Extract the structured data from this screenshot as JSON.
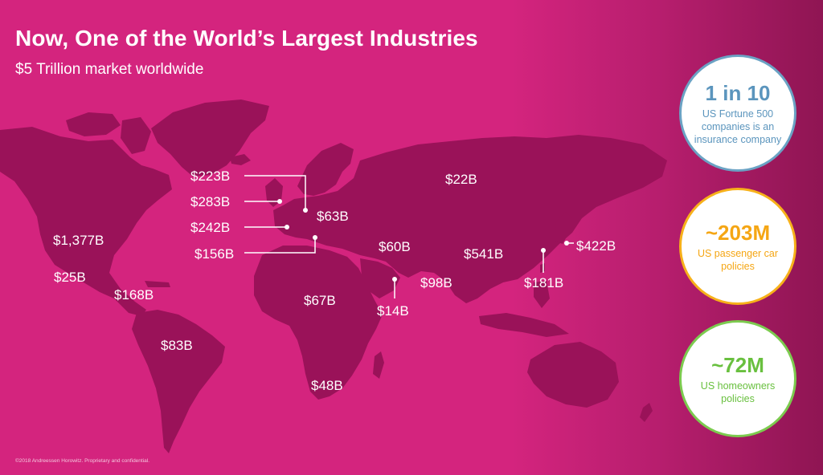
{
  "title": "Now, One of the World’s Largest Industries",
  "subtitle": "$5 Trillion market worldwide",
  "footer": "©2018 Andreessen Horowitz. Proprietary and confidential.",
  "colors": {
    "background": "#d4247e",
    "land": "#9a1259",
    "stat_blue": "#5b95bd",
    "stat_orange": "#f5a614",
    "stat_green": "#69c03f"
  },
  "map_labels": [
    {
      "region": "United States",
      "value": "$1,377B"
    },
    {
      "region": "Mexico",
      "value": "$25B"
    },
    {
      "region": "Central America and Caribbean",
      "value": "$168B"
    },
    {
      "region": "South America",
      "value": "$83B"
    },
    {
      "region": "Switzerland",
      "value": "$223B"
    },
    {
      "region": "United Kingdom",
      "value": "$283B"
    },
    {
      "region": "France",
      "value": "$242B"
    },
    {
      "region": "Italy",
      "value": "$156B"
    },
    {
      "region": "Eastern Europe",
      "value": "$63B"
    },
    {
      "region": "Russia",
      "value": "$22B"
    },
    {
      "region": "Middle East",
      "value": "$60B"
    },
    {
      "region": "Gulf",
      "value": "$14B"
    },
    {
      "region": "India",
      "value": "$98B"
    },
    {
      "region": "China",
      "value": "$541B"
    },
    {
      "region": "Taiwan",
      "value": "$181B"
    },
    {
      "region": "Japan",
      "value": "$422B"
    },
    {
      "region": "Africa",
      "value": "$67B"
    },
    {
      "region": "South Africa",
      "value": "$48B"
    }
  ],
  "stats": [
    {
      "value": "1 in 10",
      "description": "US Fortune 500 companies is an insurance company",
      "color": "#5b95bd"
    },
    {
      "value": "~203M",
      "description": "US passenger car policies",
      "color": "#f5a614"
    },
    {
      "value": "~72M",
      "description": "US homeowners policies",
      "color": "#69c03f"
    }
  ]
}
